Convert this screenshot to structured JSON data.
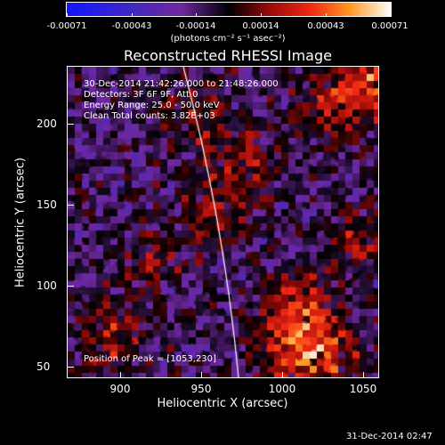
{
  "colorbar": {
    "labels": [
      "-0.00071",
      "-0.00043",
      "-0.00014",
      "0.00014",
      "0.00043",
      "0.00071"
    ],
    "units": "(photons cm⁻² s⁻¹ asec⁻²)"
  },
  "title": "Reconstructed RHESSI Image",
  "info": {
    "line1": "30-Dec-2014 21:42:26.000 to 21:48:26.000",
    "line2": "Detectors: 3F 6F 9F, Att 0",
    "line3": "Energy Range: 25.0 - 50.0 keV",
    "line4": "Clean     Total counts: 3.82E+03"
  },
  "peak": "Position of Peak = [1053,230]",
  "axes": {
    "xlabel": "Heliocentric X (arcsec)",
    "ylabel": "Heliocentric Y (arcsec)",
    "xticks": [
      "900",
      "950",
      "1000",
      "1050"
    ],
    "yticks": [
      "200",
      "150",
      "100",
      "50"
    ]
  },
  "timestamp": "31-Dec-2014 02:47",
  "colors": {
    "background": "#000000",
    "limb": "#ffffff"
  }
}
